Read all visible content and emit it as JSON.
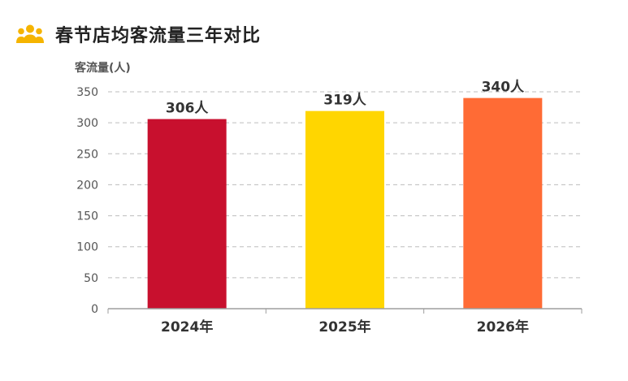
{
  "header": {
    "title": "春节店均客流量三年对比",
    "icon": "users-group-icon",
    "icon_color": "#F5B400"
  },
  "chart_data": {
    "type": "bar",
    "title": "春节店均客流量三年对比",
    "xlabel": "",
    "ylabel": "客流量(人)",
    "categories": [
      "2024年",
      "2025年",
      "2026年"
    ],
    "values": [
      306,
      319,
      340
    ],
    "data_labels": [
      "306人",
      "319人",
      "340人"
    ],
    "colors": [
      "#C8102E",
      "#FFD600",
      "#FF6B35"
    ],
    "ylim": [
      0,
      350
    ],
    "yticks": [
      0,
      50,
      100,
      150,
      200,
      250,
      300,
      350
    ],
    "grid": true,
    "grid_style": "dashed",
    "legend": "none"
  }
}
